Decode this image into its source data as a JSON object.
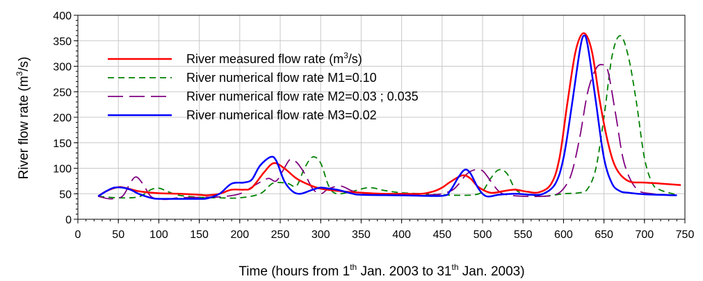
{
  "chart_data": {
    "type": "line",
    "xlabel": {
      "prefix": "Time (hours from 1",
      "sup1": "th",
      "middle": " Jan. 2003 to 31",
      "sup2": "th",
      "suffix": " Jan. 2003)"
    },
    "ylabel": {
      "prefix": "River flow rate (m",
      "sup": "3",
      "suffix": "/s)"
    },
    "xlim": [
      0,
      750
    ],
    "ylim": [
      0,
      400
    ],
    "xticks": [
      0,
      50,
      100,
      150,
      200,
      250,
      300,
      350,
      400,
      450,
      500,
      550,
      600,
      650,
      700,
      750
    ],
    "yticks": [
      0,
      50,
      100,
      150,
      200,
      250,
      300,
      350,
      400
    ],
    "grid": true,
    "legend_position": "upper-left",
    "series": [
      {
        "name": "River measured flow rate (m3/s)",
        "legend": {
          "prefix": "River measured flow rate (m",
          "sup": "3",
          "suffix": "/s)"
        },
        "color": "#ff0000",
        "style": "solid",
        "x": [
          25,
          35,
          50,
          60,
          75,
          100,
          125,
          150,
          160,
          175,
          190,
          205,
          215,
          230,
          242,
          255,
          270,
          285,
          300,
          325,
          350,
          375,
          400,
          425,
          440,
          450,
          460,
          475,
          485,
          495,
          510,
          525,
          540,
          555,
          570,
          585,
          595,
          605,
          615,
          625,
          635,
          645,
          655,
          665,
          680,
          700,
          720,
          745
        ],
        "y": [
          45,
          55,
          63,
          61,
          55,
          51,
          50,
          48,
          47,
          50,
          58,
          58,
          62,
          92,
          110,
          100,
          80,
          68,
          60,
          55,
          52,
          50,
          50,
          50,
          55,
          62,
          73,
          86,
          80,
          63,
          52,
          55,
          58,
          54,
          53,
          70,
          120,
          230,
          330,
          365,
          330,
          230,
          150,
          100,
          75,
          72,
          70,
          67
        ]
      },
      {
        "name": "River numerical flow rate M1=0.10",
        "legend": {
          "text": "River numerical flow rate M1=0.10"
        },
        "color": "#008000",
        "style": "short-dash",
        "x": [
          25,
          50,
          75,
          90,
          100,
          110,
          125,
          150,
          175,
          200,
          225,
          240,
          250,
          260,
          270,
          280,
          290,
          300,
          310,
          320,
          340,
          360,
          380,
          400,
          425,
          450,
          470,
          490,
          500,
          510,
          520,
          530,
          540,
          550,
          560,
          575,
          600,
          620,
          630,
          640,
          650,
          660,
          670,
          680,
          690,
          700,
          710,
          720,
          740
        ],
        "y": [
          45,
          42,
          44,
          58,
          61,
          55,
          47,
          43,
          42,
          42,
          50,
          70,
          72,
          70,
          65,
          100,
          122,
          110,
          65,
          50,
          55,
          62,
          56,
          52,
          50,
          48,
          47,
          48,
          55,
          80,
          97,
          90,
          60,
          50,
          47,
          45,
          50,
          52,
          60,
          100,
          200,
          320,
          360,
          320,
          230,
          120,
          70,
          57,
          48
        ]
      },
      {
        "name": "River numerical flow rate M2=0.03 ; 0.035",
        "legend": {
          "text": "River numerical flow rate M2=0.03 ; 0.035"
        },
        "color": "#800080",
        "style": "long-dash",
        "x": [
          25,
          40,
          55,
          65,
          72,
          80,
          90,
          100,
          110,
          125,
          150,
          175,
          200,
          220,
          235,
          245,
          255,
          262,
          270,
          280,
          290,
          300,
          310,
          325,
          340,
          360,
          400,
          440,
          460,
          470,
          480,
          490,
          500,
          510,
          520,
          530,
          550,
          575,
          590,
          600,
          610,
          620,
          630,
          640,
          648,
          655,
          665,
          675,
          690,
          710,
          740
        ],
        "y": [
          45,
          40,
          45,
          72,
          83,
          70,
          45,
          40,
          39,
          42,
          43,
          44,
          50,
          68,
          80,
          75,
          100,
          117,
          112,
          90,
          60,
          50,
          60,
          65,
          55,
          50,
          48,
          48,
          55,
          68,
          88,
          97,
          95,
          75,
          55,
          48,
          45,
          45,
          48,
          60,
          90,
          160,
          250,
          295,
          303,
          290,
          200,
          110,
          60,
          50,
          47
        ]
      },
      {
        "name": "River numerical flow rate M3=0.02",
        "legend": {
          "text": "River numerical flow rate M3=0.02"
        },
        "color": "#0000ff",
        "style": "solid",
        "x": [
          25,
          35,
          45,
          55,
          65,
          75,
          90,
          100,
          125,
          150,
          160,
          175,
          190,
          205,
          215,
          225,
          238,
          245,
          255,
          265,
          275,
          290,
          300,
          310,
          320,
          340,
          350,
          400,
          450,
          460,
          470,
          478,
          485,
          495,
          505,
          520,
          540,
          560,
          575,
          590,
          600,
          610,
          620,
          625,
          630,
          640,
          650,
          660,
          670,
          680,
          700,
          740
        ],
        "y": [
          45,
          55,
          62,
          62,
          58,
          50,
          42,
          40,
          40,
          40,
          41,
          50,
          70,
          72,
          78,
          105,
          122,
          115,
          75,
          55,
          50,
          58,
          62,
          60,
          58,
          50,
          48,
          47,
          46,
          56,
          82,
          97,
          90,
          60,
          45,
          48,
          50,
          48,
          50,
          70,
          120,
          220,
          330,
          360,
          340,
          230,
          120,
          70,
          55,
          52,
          49,
          47
        ]
      }
    ]
  }
}
